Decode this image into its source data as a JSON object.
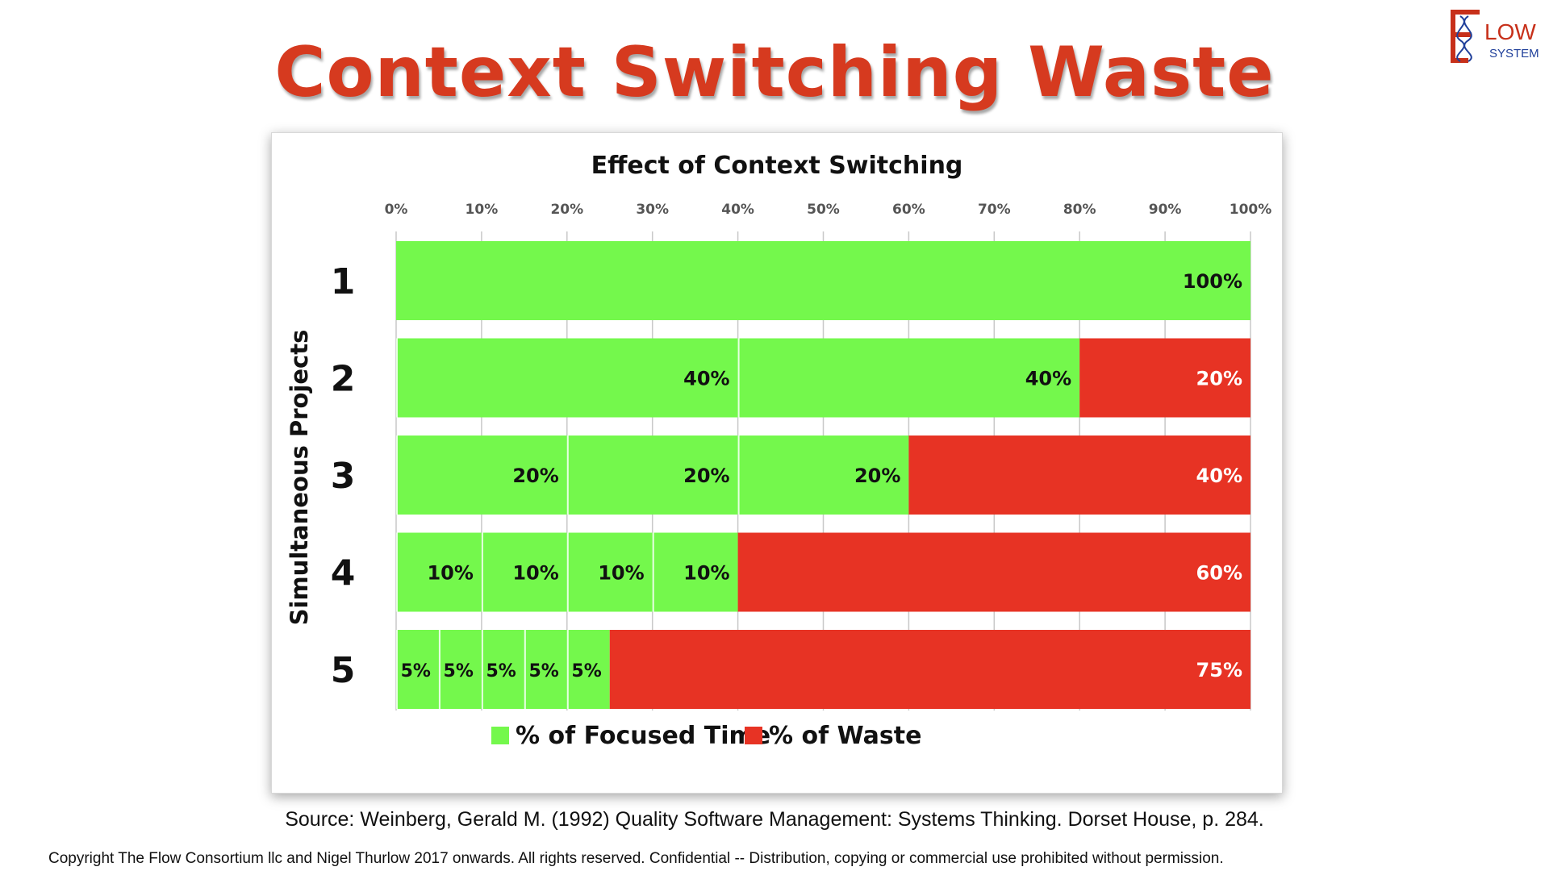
{
  "slide": {
    "title": "Context Switching Waste",
    "source": "Source: Weinberg, Gerald M. (1992) Quality Software Management: Systems Thinking. Dorset House, p. 284.",
    "copyright": "Copyright The Flow Consortium llc and Nigel Thurlow 2017 onwards. All rights reserved. Confidential -- Distribution, copying or commercial use prohibited without permission."
  },
  "logo": {
    "text_main": "LOW",
    "text_sub": "SYSTEM",
    "letter": "F"
  },
  "colors": {
    "focused": "#74f84c",
    "waste": "#e73324",
    "title": "#d63a1f"
  },
  "chart_data": {
    "type": "bar",
    "orientation": "horizontal",
    "stacked": true,
    "title": "Effect of Context Switching",
    "ylabel": "Simultaneous Projects",
    "xlabel": "",
    "categories": [
      "1",
      "2",
      "3",
      "4",
      "5"
    ],
    "xlim": [
      0,
      100
    ],
    "x_ticks": [
      "0%",
      "10%",
      "20%",
      "30%",
      "40%",
      "50%",
      "60%",
      "70%",
      "80%",
      "90%",
      "100%"
    ],
    "grid": true,
    "legend_position": "bottom",
    "legend": [
      "% of Focused Time",
      "% of Waste"
    ],
    "rows": [
      {
        "category": "1",
        "segments": [
          {
            "kind": "focused",
            "value": 100,
            "label": "100%"
          }
        ]
      },
      {
        "category": "2",
        "segments": [
          {
            "kind": "focused",
            "value": 40,
            "label": "40%"
          },
          {
            "kind": "focused",
            "value": 40,
            "label": "40%"
          },
          {
            "kind": "waste",
            "value": 20,
            "label": "20%"
          }
        ]
      },
      {
        "category": "3",
        "segments": [
          {
            "kind": "focused",
            "value": 20,
            "label": "20%"
          },
          {
            "kind": "focused",
            "value": 20,
            "label": "20%"
          },
          {
            "kind": "focused",
            "value": 20,
            "label": "20%"
          },
          {
            "kind": "waste",
            "value": 40,
            "label": "40%"
          }
        ]
      },
      {
        "category": "4",
        "segments": [
          {
            "kind": "focused",
            "value": 10,
            "label": "10%"
          },
          {
            "kind": "focused",
            "value": 10,
            "label": "10%"
          },
          {
            "kind": "focused",
            "value": 10,
            "label": "10%"
          },
          {
            "kind": "focused",
            "value": 10,
            "label": "10%"
          },
          {
            "kind": "waste",
            "value": 60,
            "label": "60%"
          }
        ]
      },
      {
        "category": "5",
        "segments": [
          {
            "kind": "focused",
            "value": 5,
            "label": "5%"
          },
          {
            "kind": "focused",
            "value": 5,
            "label": "5%"
          },
          {
            "kind": "focused",
            "value": 5,
            "label": "5%"
          },
          {
            "kind": "focused",
            "value": 5,
            "label": "5%"
          },
          {
            "kind": "focused",
            "value": 5,
            "label": "5%"
          },
          {
            "kind": "waste",
            "value": 75,
            "label": "75%"
          }
        ]
      }
    ]
  }
}
